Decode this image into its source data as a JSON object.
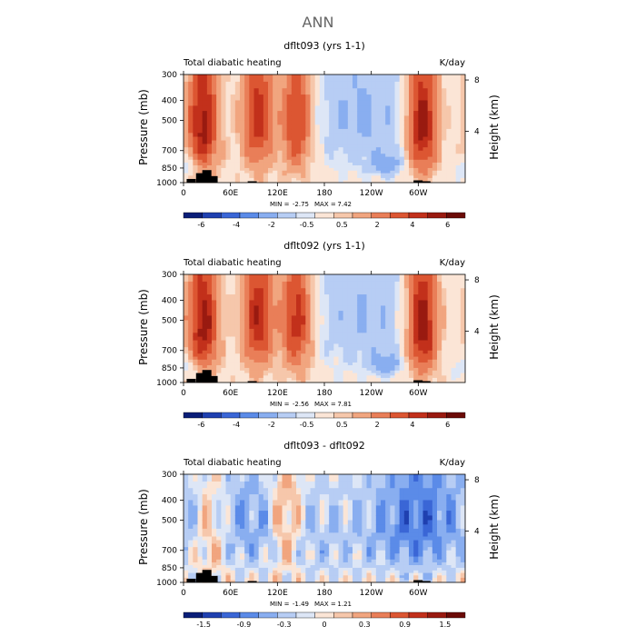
{
  "title": "ANN",
  "colors": {
    "palette_blue_to_red": [
      "#0a1e78",
      "#1f40b0",
      "#3a66d6",
      "#5b8be8",
      "#89aef0",
      "#b7cdf4",
      "#dde6f6",
      "#fbe5d6",
      "#f6c7ab",
      "#f1a57f",
      "#e97e58",
      "#dc5632",
      "#c2301b",
      "#991a10",
      "#6b0b07"
    ],
    "blue": "#5b8be8",
    "red": "#dc5632",
    "terrain": "#000000"
  },
  "chart_data": [
    {
      "type": "heatmap",
      "title": "dflt093 (yrs 1-1)",
      "left_label": "Total diabatic heating",
      "units": "K/day",
      "ylabel": "Pressure (mb)",
      "ylabel_right": "Height (km)",
      "x_range_deg": [
        0,
        360
      ],
      "y_range_mb": [
        1000,
        300
      ],
      "yticks": [
        "300",
        "400",
        "500",
        "700",
        "850",
        "1000"
      ],
      "ytick_values": [
        300,
        400,
        500,
        700,
        850,
        1000
      ],
      "right_ticks": [
        "8",
        "4"
      ],
      "right_tick_values_km": [
        8,
        4
      ],
      "xticks": [
        "0",
        "60E",
        "120E",
        "180",
        "120W",
        "60W"
      ],
      "xtick_values": [
        0,
        60,
        120,
        180,
        240,
        300
      ],
      "stats": {
        "min_label": "MIN =",
        "min": "-2.75",
        "max_label": "MAX =",
        "max": "7.42"
      },
      "colorbar_labels": [
        "-6",
        "-4",
        "-2",
        "-0.5",
        "0.5",
        "2",
        "4",
        "6"
      ],
      "features": [
        {
          "kind": "pos",
          "lon": 25,
          "p": 520,
          "amp": 5.5
        },
        {
          "kind": "pos",
          "lon": 95,
          "p": 480,
          "amp": 4.5
        },
        {
          "kind": "pos",
          "lon": 145,
          "p": 500,
          "amp": 4.5
        },
        {
          "kind": "pos",
          "lon": 305,
          "p": 520,
          "amp": 6.0
        },
        {
          "kind": "neg",
          "lon": 230,
          "p": 470,
          "amp": 2.2
        },
        {
          "kind": "neg",
          "lon": 260,
          "p": 820,
          "amp": 2.5
        },
        {
          "kind": "neg",
          "lon": 5,
          "p": 850,
          "amp": 1.5
        }
      ]
    },
    {
      "type": "heatmap",
      "title": "dflt092 (yrs 1-1)",
      "left_label": "Total diabatic heating",
      "units": "K/day",
      "ylabel": "Pressure (mb)",
      "ylabel_right": "Height (km)",
      "x_range_deg": [
        0,
        360
      ],
      "y_range_mb": [
        1000,
        300
      ],
      "yticks": [
        "300",
        "400",
        "500",
        "700",
        "850",
        "1000"
      ],
      "ytick_values": [
        300,
        400,
        500,
        700,
        850,
        1000
      ],
      "right_ticks": [
        "8",
        "4"
      ],
      "right_tick_values_km": [
        8,
        4
      ],
      "xticks": [
        "0",
        "60E",
        "120E",
        "180",
        "120W",
        "60W"
      ],
      "xtick_values": [
        0,
        60,
        120,
        180,
        240,
        300
      ],
      "stats": {
        "min_label": "MIN =",
        "min": "-2.56",
        "max_label": "MAX =",
        "max": "7.81"
      },
      "colorbar_labels": [
        "-6",
        "-4",
        "-2",
        "-0.5",
        "0.5",
        "2",
        "4",
        "6"
      ],
      "features": [
        {
          "kind": "pos",
          "lon": 25,
          "p": 520,
          "amp": 5.5
        },
        {
          "kind": "pos",
          "lon": 95,
          "p": 480,
          "amp": 4.8
        },
        {
          "kind": "pos",
          "lon": 145,
          "p": 500,
          "amp": 4.8
        },
        {
          "kind": "pos",
          "lon": 305,
          "p": 520,
          "amp": 6.2
        },
        {
          "kind": "neg",
          "lon": 230,
          "p": 470,
          "amp": 2.1
        },
        {
          "kind": "neg",
          "lon": 260,
          "p": 820,
          "amp": 2.4
        },
        {
          "kind": "neg",
          "lon": 5,
          "p": 850,
          "amp": 1.5
        }
      ]
    },
    {
      "type": "heatmap",
      "title": "dflt093 - dflt092",
      "left_label": "Total diabatic heating",
      "units": "K/day",
      "ylabel": "Pressure (mb)",
      "ylabel_right": "Height (km)",
      "x_range_deg": [
        0,
        360
      ],
      "y_range_mb": [
        1000,
        300
      ],
      "yticks": [
        "300",
        "400",
        "500",
        "700",
        "850",
        "1000"
      ],
      "ytick_values": [
        300,
        400,
        500,
        700,
        850,
        1000
      ],
      "right_ticks": [
        "8",
        "4"
      ],
      "right_tick_values_km": [
        8,
        4
      ],
      "xticks": [
        "0",
        "60E",
        "120E",
        "180",
        "120W",
        "60W"
      ],
      "xtick_values": [
        0,
        60,
        120,
        180,
        240,
        300
      ],
      "stats": {
        "min_label": "MIN =",
        "min": "-1.49",
        "max_label": "MAX =",
        "max": "1.21"
      },
      "colorbar_labels": [
        "-1.5",
        "-0.9",
        "-0.3",
        "0",
        "0.3",
        "0.9",
        "1.5"
      ],
      "features": [
        {
          "kind": "pos",
          "lon": 35,
          "p": 550,
          "amp": 0.6
        },
        {
          "kind": "pos",
          "lon": 130,
          "p": 500,
          "amp": 0.9
        },
        {
          "kind": "neg",
          "lon": 85,
          "p": 500,
          "amp": 0.7
        },
        {
          "kind": "neg",
          "lon": 300,
          "p": 500,
          "amp": 1.2
        },
        {
          "kind": "neg",
          "lon": 180,
          "p": 650,
          "amp": 0.4
        }
      ]
    }
  ]
}
